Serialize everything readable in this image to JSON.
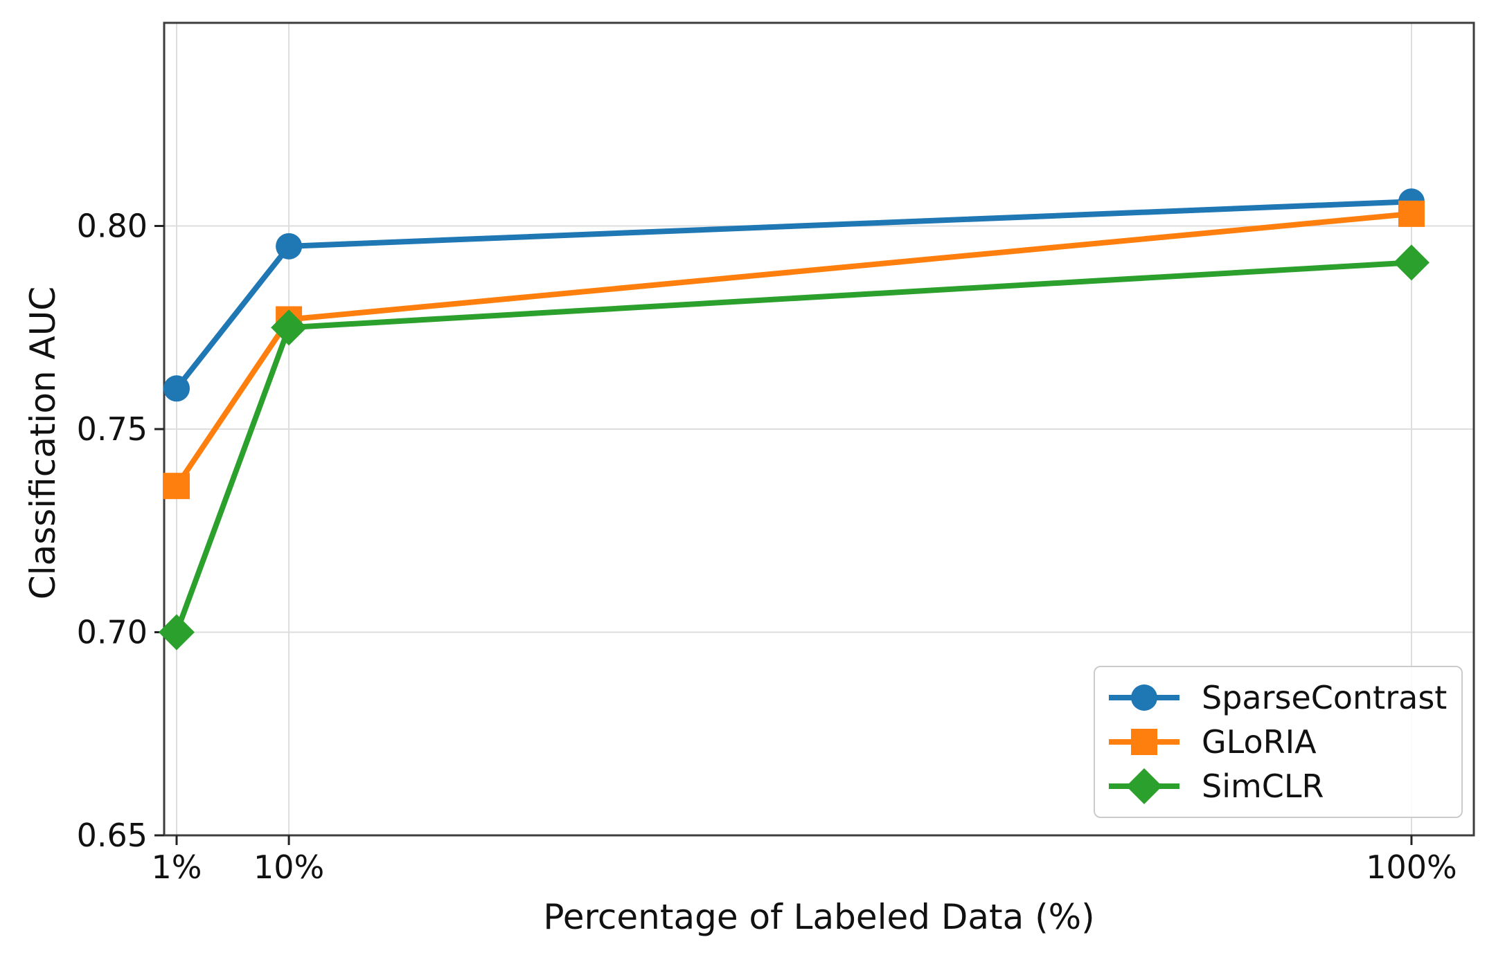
{
  "figure": {
    "background": "#ffffff"
  },
  "chart_data": {
    "type": "line",
    "title": "",
    "xlabel": "Percentage of Labeled Data (%)",
    "ylabel": "Classification AUC",
    "x": [
      1,
      10,
      100
    ],
    "x_tick_labels": [
      "1%",
      "10%",
      "100%"
    ],
    "y_ticks": [
      0.65,
      0.7,
      0.75,
      0.8
    ],
    "y_tick_labels": [
      "0.65",
      "0.70",
      "0.75",
      "0.80"
    ],
    "xlim": [
      0,
      105
    ],
    "ylim": [
      0.65,
      0.85
    ],
    "x_scale": "linear",
    "grid": true,
    "legend_position": "lower right",
    "series": [
      {
        "name": "SparseContrast",
        "marker": "circle",
        "color": "#1f77b4",
        "values": [
          0.76,
          0.795,
          0.806
        ]
      },
      {
        "name": "GLoRIA",
        "marker": "square",
        "color": "#ff7f0e",
        "values": [
          0.736,
          0.777,
          0.803
        ]
      },
      {
        "name": "SimCLR",
        "marker": "diamond",
        "color": "#2ca02c",
        "values": [
          0.7,
          0.775,
          0.791
        ]
      }
    ]
  },
  "style_colors": {
    "grid": "#dddddd",
    "spine": "#3d3d3d",
    "tick": "#222222",
    "text": "#111111",
    "legend_border": "#cbcbcb"
  }
}
